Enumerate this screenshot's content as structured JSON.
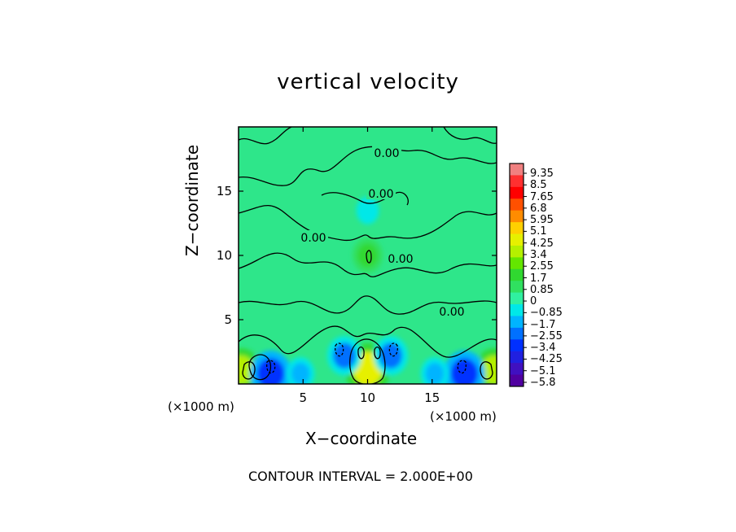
{
  "chart_data": {
    "type": "heatmap",
    "title": "vertical velocity",
    "xlabel": "X−coordinate",
    "ylabel": "Z−coordinate",
    "x_units": "(×1000 m)",
    "z_units": "(×1000 m)",
    "xlim": [
      0,
      20
    ],
    "ylim": [
      0,
      20
    ],
    "x_ticks": [
      "5",
      "10",
      "15"
    ],
    "y_ticks": [
      "5",
      "10",
      "15"
    ],
    "x_tick_values": [
      5,
      10,
      15
    ],
    "y_tick_values": [
      5,
      10,
      15
    ],
    "contour_label": "0.00",
    "contour_interval_text": "CONTOUR INTERVAL = 2.000E+00",
    "colorbar": {
      "labels": [
        "9.35",
        "8.5",
        "7.65",
        "6.8",
        "5.95",
        "5.1",
        "4.25",
        "3.4",
        "2.55",
        "1.7",
        "0.85",
        "0",
        "−0.85",
        "−1.7",
        "−2.55",
        "−3.4",
        "−4.25",
        "−5.1",
        "−5.8"
      ],
      "levels": [
        9.35,
        8.5,
        7.65,
        6.8,
        5.95,
        5.1,
        4.25,
        3.4,
        2.55,
        1.7,
        0.85,
        0,
        -0.85,
        -1.7,
        -2.55,
        -3.4,
        -4.25,
        -5.1,
        -5.8
      ],
      "colors": [
        "#f08080",
        "#ff3030",
        "#ff0000",
        "#ff5000",
        "#ff8c00",
        "#ffd000",
        "#e6f000",
        "#b4f000",
        "#64e600",
        "#30d830",
        "#30e060",
        "#30f0a0",
        "#00e8e8",
        "#00b4ff",
        "#0070ff",
        "#0030ff",
        "#2020e0",
        "#4010c0",
        "#5000a0"
      ]
    },
    "features": [
      {
        "kind": "updraft",
        "x": 10,
        "z": 1.2,
        "w": 4.0
      },
      {
        "kind": "updraft",
        "x": 10,
        "z": 10.0,
        "w": 2.0
      },
      {
        "kind": "updraft",
        "x": 0.2,
        "z": 1.1,
        "w": 3.0
      },
      {
        "kind": "updraft",
        "x": 19.8,
        "z": 1.1,
        "w": 3.0
      },
      {
        "kind": "downdraft",
        "x": 2.5,
        "z": 0.8,
        "w": -3.4
      },
      {
        "kind": "downdraft",
        "x": 17.5,
        "z": 0.8,
        "w": -3.4
      },
      {
        "kind": "downdraft",
        "x": 8.2,
        "z": 2.2,
        "w": -2.5
      },
      {
        "kind": "downdraft",
        "x": 11.8,
        "z": 2.2,
        "w": -2.5
      },
      {
        "kind": "downdraft",
        "x": 4.8,
        "z": 0.8,
        "w": -1.7
      },
      {
        "kind": "downdraft",
        "x": 15.2,
        "z": 0.8,
        "w": -1.7
      },
      {
        "kind": "downdraft",
        "x": 10,
        "z": 13.5,
        "w": -1.0
      }
    ]
  }
}
